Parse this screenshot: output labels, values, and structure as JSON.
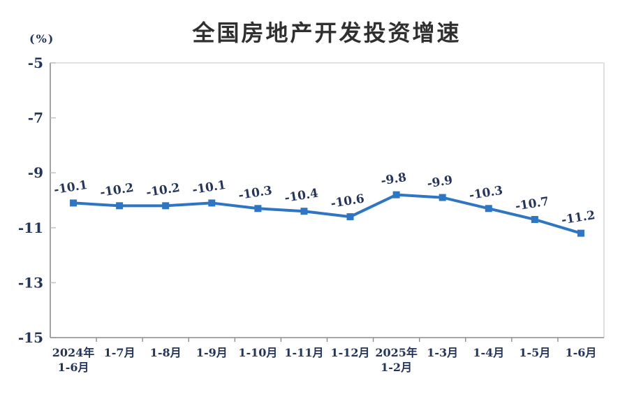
{
  "chart_data": {
    "type": "line",
    "title": "全国房地产开发投资增速",
    "unit_label": "(%)",
    "categories": [
      "2024年\n1-6月",
      "1-7月",
      "1-8月",
      "1-9月",
      "1-10月",
      "1-11月",
      "1-12月",
      "2025年\n1-2月",
      "1-3月",
      "1-4月",
      "1-5月",
      "1-6月"
    ],
    "values": [
      -10.1,
      -10.2,
      -10.2,
      -10.1,
      -10.3,
      -10.4,
      -10.6,
      -9.8,
      -9.9,
      -10.3,
      -10.7,
      -11.2
    ],
    "point_labels": [
      "-10.1",
      "-10.2",
      "-10.2",
      "-10.1",
      "-10.3",
      "-10.4",
      "-10.6",
      "-9.8",
      "-9.9",
      "-10.3",
      "-10.7",
      "-11.2"
    ],
    "ylim": [
      -15,
      -5
    ],
    "yticks": [
      "-5",
      "-7",
      "-9",
      "-11",
      "-13",
      "-15"
    ],
    "ytick_values": [
      -5,
      -7,
      -9,
      -11,
      -13,
      -15
    ],
    "grid": false,
    "legend": "none",
    "colors": {
      "line": "#2E75C3",
      "marker": "#2E75C3",
      "label_text": "#25355C",
      "axis_text": "#24355C",
      "axis_line": "#8C8C8C",
      "tick_line": "#BFBFBF",
      "border": "#D9D9D9",
      "title_text": "#303030",
      "background": "#FFFFFF"
    }
  }
}
